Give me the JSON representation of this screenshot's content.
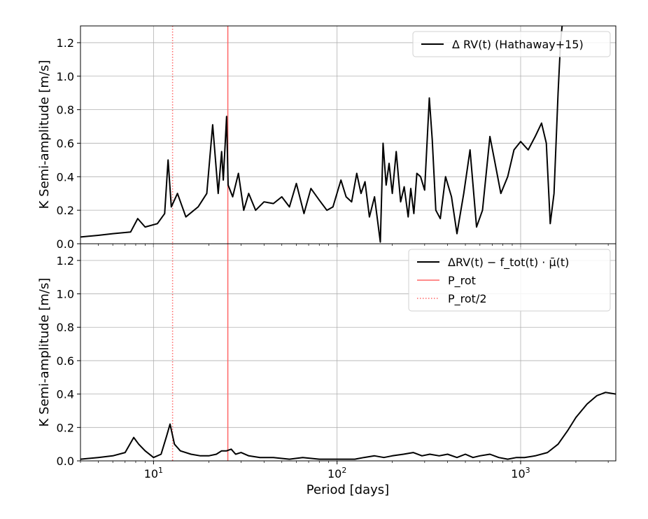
{
  "figure": {
    "xlabel": "Period [days]"
  },
  "chart_data": [
    {
      "type": "line",
      "panel": "top",
      "xscale": "log",
      "xlim": [
        4.0,
        3300
      ],
      "ylim": [
        0.0,
        1.3
      ],
      "xlabel": "",
      "ylabel": "K Semi-amplitude [m/s]",
      "x_ticks": [
        "10^1",
        "10^2",
        "10^3"
      ],
      "y_ticks": [
        "0.0",
        "0.2",
        "0.4",
        "0.6",
        "0.8",
        "1.0",
        "1.2"
      ],
      "grid": true,
      "legend_position": "upper-right",
      "series": [
        {
          "name": "Δ RV(t) (Hathaway+15)",
          "color": "#000000",
          "x": [
            4.0,
            5.0,
            6.0,
            7.5,
            8.2,
            9.0,
            10.5,
            11.5,
            12.0,
            12.5,
            13.5,
            15.0,
            17.5,
            19.5,
            21.0,
            22.5,
            23.5,
            24.0,
            25.0,
            25.5,
            27.0,
            29.0,
            31.0,
            33.0,
            36.0,
            40.0,
            45.0,
            50.0,
            55.0,
            60.0,
            66.0,
            72.0,
            80.0,
            88.0,
            95.0,
            105.0,
            112.0,
            120.0,
            128.0,
            135.0,
            142.0,
            150.0,
            160.0,
            172.0,
            178.0,
            185.0,
            192.0,
            200.0,
            210.0,
            222.0,
            232.0,
            244.0,
            252.0,
            262.0,
            272.0,
            285.0,
            300.0,
            318.0,
            330.0,
            345.0,
            365.0,
            390.0,
            420.0,
            450.0,
            490.0,
            530.0,
            575.0,
            620.0,
            680.0,
            720.0,
            780.0,
            850.0,
            920.0,
            1000.0,
            1100.0,
            1200.0,
            1300.0,
            1380.0,
            1450.0,
            1520.0,
            1600.0,
            1650.0,
            1700.0
          ],
          "y": [
            0.04,
            0.05,
            0.06,
            0.07,
            0.15,
            0.1,
            0.12,
            0.18,
            0.5,
            0.22,
            0.3,
            0.16,
            0.22,
            0.3,
            0.71,
            0.3,
            0.55,
            0.38,
            0.76,
            0.35,
            0.28,
            0.42,
            0.2,
            0.3,
            0.2,
            0.25,
            0.24,
            0.28,
            0.22,
            0.36,
            0.18,
            0.33,
            0.26,
            0.2,
            0.22,
            0.38,
            0.28,
            0.25,
            0.42,
            0.3,
            0.37,
            0.16,
            0.28,
            0.01,
            0.6,
            0.35,
            0.48,
            0.3,
            0.55,
            0.25,
            0.34,
            0.16,
            0.33,
            0.18,
            0.42,
            0.4,
            0.32,
            0.87,
            0.62,
            0.2,
            0.15,
            0.4,
            0.28,
            0.06,
            0.3,
            0.56,
            0.1,
            0.2,
            0.64,
            0.5,
            0.3,
            0.4,
            0.56,
            0.61,
            0.56,
            0.64,
            0.72,
            0.6,
            0.12,
            0.3,
            0.9,
            1.2,
            1.35
          ]
        }
      ]
    },
    {
      "type": "line",
      "panel": "bottom",
      "xscale": "log",
      "xlim": [
        4.0,
        3300
      ],
      "ylim": [
        0.0,
        1.3
      ],
      "xlabel": "Period [days]",
      "ylabel": "K Semi-amplitude [m/s]",
      "x_ticks": [
        "10^1",
        "10^2",
        "10^3"
      ],
      "y_ticks": [
        "0.0",
        "0.2",
        "0.4",
        "0.6",
        "0.8",
        "1.0",
        "1.2"
      ],
      "grid": true,
      "legend_position": "upper-right",
      "series": [
        {
          "name": "ΔRV(t) − f_tot(t) · μ̄(t)",
          "color": "#000000",
          "x": [
            4.0,
            5.0,
            6.0,
            7.0,
            7.8,
            8.3,
            9.0,
            10.0,
            11.0,
            11.8,
            12.3,
            13.0,
            14.0,
            16.0,
            18.0,
            20.0,
            22.0,
            23.5,
            25.0,
            26.5,
            28.0,
            30.0,
            33.0,
            38.0,
            45.0,
            55.0,
            65.0,
            80.0,
            95.0,
            110.0,
            125.0,
            140.0,
            160.0,
            180.0,
            200.0,
            230.0,
            260.0,
            290.0,
            320.0,
            360.0,
            400.0,
            450.0,
            500.0,
            550.0,
            600.0,
            680.0,
            760.0,
            850.0,
            950.0,
            1050.0,
            1200.0,
            1400.0,
            1600.0,
            1800.0,
            2000.0,
            2300.0,
            2600.0,
            2900.0,
            3300.0
          ],
          "y": [
            0.01,
            0.02,
            0.03,
            0.05,
            0.14,
            0.1,
            0.06,
            0.02,
            0.04,
            0.15,
            0.22,
            0.1,
            0.06,
            0.04,
            0.03,
            0.03,
            0.04,
            0.06,
            0.06,
            0.07,
            0.04,
            0.05,
            0.03,
            0.02,
            0.02,
            0.01,
            0.02,
            0.01,
            0.01,
            0.01,
            0.01,
            0.02,
            0.03,
            0.02,
            0.03,
            0.04,
            0.05,
            0.03,
            0.04,
            0.03,
            0.04,
            0.02,
            0.04,
            0.02,
            0.03,
            0.04,
            0.02,
            0.01,
            0.02,
            0.02,
            0.03,
            0.05,
            0.1,
            0.18,
            0.26,
            0.34,
            0.39,
            0.41,
            0.4
          ]
        }
      ]
    }
  ],
  "reference_lines": [
    {
      "name": "P_rot",
      "x": 25.4,
      "color": "#ff6666",
      "style": "solid"
    },
    {
      "name": "P_rot/2",
      "x": 12.7,
      "color": "#ff6666",
      "style": "dotted"
    }
  ]
}
